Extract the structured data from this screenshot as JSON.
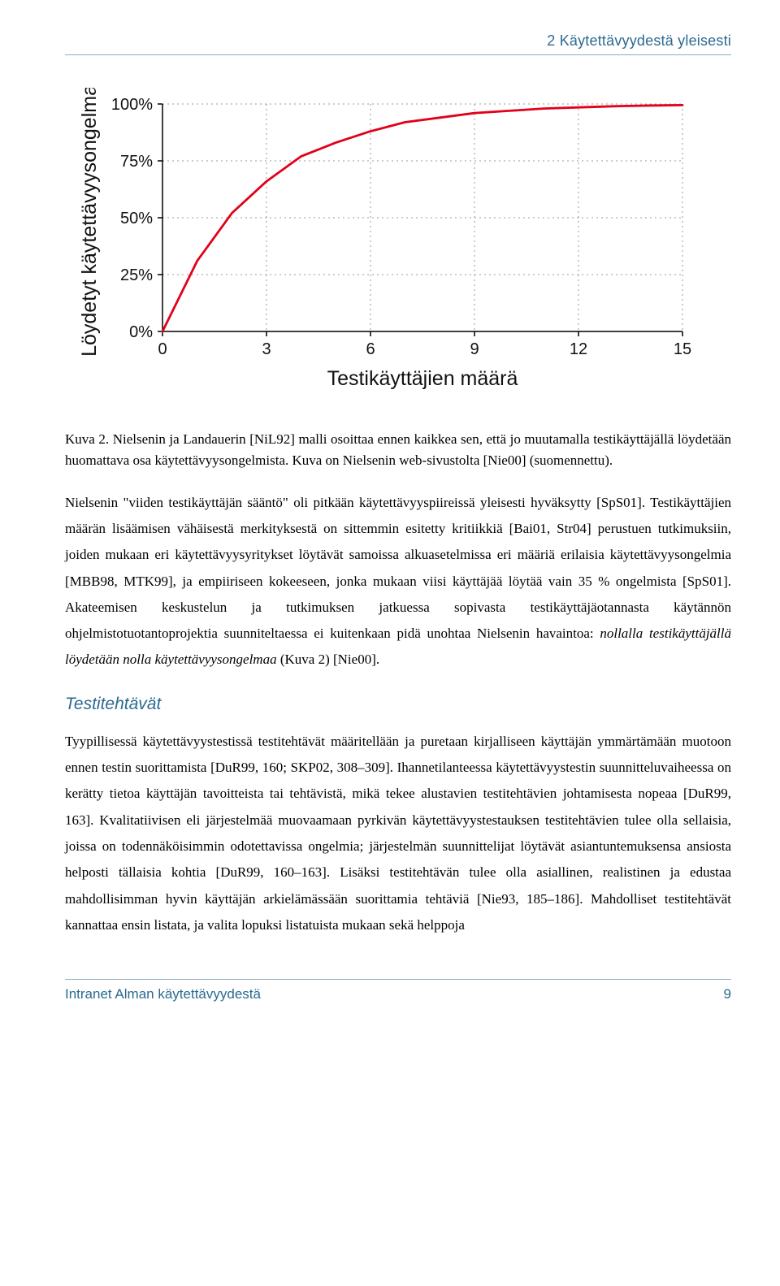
{
  "header": {
    "running_title": "2  Käytettävyydestä yleisesti"
  },
  "chart": {
    "type": "line",
    "xlabel": "Testikäyttäjien määrä",
    "ylabel": "Löydetyt käytettävyysongelmat",
    "xlim": [
      0,
      15
    ],
    "ylim": [
      0,
      100
    ],
    "xtick_positions": [
      0,
      3,
      6,
      9,
      12,
      15
    ],
    "xtick_labels": [
      "0",
      "3",
      "6",
      "9",
      "12",
      "15"
    ],
    "ytick_positions": [
      0,
      25,
      50,
      75,
      100
    ],
    "ytick_labels": [
      "0%",
      "25%",
      "50%",
      "75%",
      "100%"
    ],
    "label_fontsize": 25,
    "tick_fontsize": 20,
    "line_color": "#e2001a",
    "line_width": 2.8,
    "grid_color": "#999999",
    "grid_on": true,
    "background_color": "#ffffff",
    "axes_color": "#000000",
    "x": [
      0,
      1,
      2,
      3,
      4,
      5,
      6,
      7,
      8,
      9,
      10,
      11,
      12,
      13,
      14,
      15
    ],
    "y": [
      0,
      31,
      52,
      66,
      77,
      83,
      88,
      92,
      94,
      96,
      97,
      98,
      98.5,
      99,
      99.3,
      99.5
    ]
  },
  "caption": {
    "lead": "Kuva 2.",
    "text": " Nielsenin ja Landauerin [NiL92] malli osoittaa ennen kaikkea sen, että jo muutamalla testikäyttäjällä löydetään huomattava osa käytettävyysongelmista. Kuva on Nielsenin web-sivustolta [Nie00] (suomennettu)."
  },
  "paragraphs": {
    "p1a": "Nielsenin \"viiden testikäyttäjän sääntö\" oli pitkään käytettävyyspiireissä yleisesti hyväksytty [SpS01]. Testikäyttäjien määrän lisäämisen vähäisestä merkityksestä on sittemmin esitetty kritiikkiä [Bai01, Str04] perustuen tutkimuksiin, joiden mukaan eri käytettävyysyritykset löytävät samoissa alkuasetelmissa eri määriä erilaisia käytettävyysongelmia [MBB98, MTK99], ja empiiriseen kokeeseen, jonka mukaan viisi käyttäjää löytää vain 35 % ongelmista [SpS01]. Akateemisen keskustelun ja tutkimuksen jatkuessa sopivasta testikäyttäjäotannasta käytännön ohjelmistotuotantoprojektia suunniteltaessa ei kuitenkaan pidä unohtaa Nielsenin havaintoa: ",
    "p1_italic": "nollalla testikäyttäjällä löydetään nolla käytettävyysongelmaa",
    "p1b": " (Kuva 2) [Nie00].",
    "p2": "Tyypillisessä käytettävyystestissä testitehtävät määritellään ja puretaan kirjalliseen käyttäjän ymmärtämään muotoon ennen testin suorittamista [DuR99, 160; SKP02, 308–309]. Ihannetilanteessa käytettävyystestin suunnitteluvaiheessa on kerätty tietoa käyttäjän tavoitteista tai tehtävistä, mikä tekee alustavien testitehtävien johtamisesta nopeaa [DuR99, 163]. Kvalitatiivisen eli järjestelmää muovaamaan pyrkivän käytettävyystestauksen testitehtävien tulee olla sellaisia, joissa on todennäköisimmin odotettavissa ongelmia; järjestelmän suunnittelijat löytävät asiantuntemuksensa ansiosta helposti tällaisia kohtia [DuR99, 160–163]. Lisäksi testitehtävän tulee olla asiallinen, realistinen ja edustaa mahdollisimman hyvin käyttäjän arkielämässään suorittamia tehtäviä [Nie93, 185–186]. Mahdolliset testitehtävät kannattaa ensin listata, ja valita lopuksi listatuista mukaan sekä helppoja"
  },
  "section_heading": "Testitehtävät",
  "footer": {
    "left": "Intranet Alman käytettävyydestä",
    "page": "9"
  }
}
